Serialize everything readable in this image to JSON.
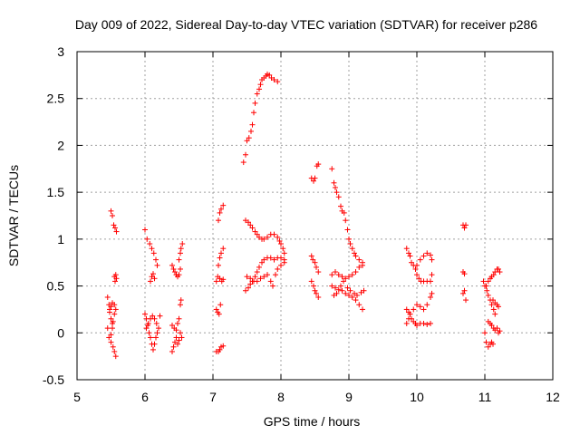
{
  "chart_data": {
    "type": "scatter",
    "title": "Day 009 of 2022, Sidereal Day-to-day VTEC variation (SDTVAR) for receiver p286",
    "xlabel": "GPS time / hours",
    "ylabel": "SDTVAR / TECUs",
    "xlim": [
      5,
      12
    ],
    "ylim": [
      -0.5,
      3
    ],
    "xticks": [
      "5",
      "6",
      "7",
      "8",
      "9",
      "10",
      "11",
      "12"
    ],
    "yticks": [
      "-0.5",
      "0",
      "0.5",
      "1",
      "1.5",
      "2",
      "2.5",
      "3"
    ],
    "grid": true,
    "marker": "plus",
    "color": "#ff0000",
    "series": [
      {
        "name": "SDTVAR",
        "points": [
          [
            5.45,
            0.38
          ],
          [
            5.47,
            0.3
          ],
          [
            5.48,
            0.22
          ],
          [
            5.5,
            0.15
          ],
          [
            5.52,
            0.1
          ],
          [
            5.45,
            0.05
          ],
          [
            5.47,
            -0.05
          ],
          [
            5.5,
            -0.1
          ],
          [
            5.53,
            -0.15
          ],
          [
            5.55,
            -0.2
          ],
          [
            5.57,
            -0.25
          ],
          [
            5.48,
            0.25
          ],
          [
            5.5,
            0.28
          ],
          [
            5.52,
            0.32
          ],
          [
            5.55,
            0.3
          ],
          [
            5.57,
            0.25
          ],
          [
            5.55,
            0.2
          ],
          [
            5.53,
            0.12
          ],
          [
            5.52,
            0.05
          ],
          [
            5.5,
            -0.02
          ],
          [
            5.5,
            1.3
          ],
          [
            5.52,
            1.25
          ],
          [
            5.54,
            1.15
          ],
          [
            5.56,
            1.12
          ],
          [
            5.58,
            1.08
          ],
          [
            5.55,
            0.6
          ],
          [
            5.57,
            0.62
          ],
          [
            5.58,
            0.58
          ],
          [
            5.56,
            0.55
          ],
          [
            6.0,
            1.1
          ],
          [
            6.03,
            1.0
          ],
          [
            6.07,
            0.95
          ],
          [
            6.1,
            0.9
          ],
          [
            6.13,
            0.85
          ],
          [
            6.16,
            0.78
          ],
          [
            6.18,
            0.72
          ],
          [
            6.0,
            0.2
          ],
          [
            6.02,
            0.15
          ],
          [
            6.04,
            0.08
          ],
          [
            6.06,
            0.0
          ],
          [
            6.08,
            -0.05
          ],
          [
            6.1,
            -0.12
          ],
          [
            6.12,
            -0.18
          ],
          [
            6.14,
            -0.12
          ],
          [
            6.16,
            -0.05
          ],
          [
            6.18,
            0.0
          ],
          [
            6.02,
            0.05
          ],
          [
            6.05,
            0.1
          ],
          [
            6.08,
            0.15
          ],
          [
            6.11,
            0.18
          ],
          [
            6.14,
            0.15
          ],
          [
            6.17,
            0.1
          ],
          [
            6.2,
            0.05
          ],
          [
            6.22,
            0.18
          ],
          [
            6.08,
            0.55
          ],
          [
            6.1,
            0.6
          ],
          [
            6.12,
            0.63
          ],
          [
            6.14,
            0.58
          ],
          [
            6.4,
            0.72
          ],
          [
            6.42,
            0.68
          ],
          [
            6.44,
            0.65
          ],
          [
            6.46,
            0.62
          ],
          [
            6.48,
            0.6
          ],
          [
            6.5,
            0.62
          ],
          [
            6.52,
            0.68
          ],
          [
            6.5,
            0.78
          ],
          [
            6.52,
            0.85
          ],
          [
            6.53,
            0.9
          ],
          [
            6.55,
            0.95
          ],
          [
            6.4,
            -0.2
          ],
          [
            6.42,
            -0.15
          ],
          [
            6.44,
            -0.1
          ],
          [
            6.46,
            -0.05
          ],
          [
            6.48,
            -0.12
          ],
          [
            6.5,
            -0.08
          ],
          [
            6.52,
            0.0
          ],
          [
            6.54,
            -0.05
          ],
          [
            6.4,
            0.08
          ],
          [
            6.43,
            0.05
          ],
          [
            6.46,
            0.03
          ],
          [
            6.48,
            0.1
          ],
          [
            6.5,
            0.15
          ],
          [
            6.52,
            0.3
          ],
          [
            6.53,
            0.35
          ],
          [
            7.05,
            -0.2
          ],
          [
            7.08,
            -0.2
          ],
          [
            7.1,
            -0.18
          ],
          [
            7.12,
            -0.15
          ],
          [
            7.15,
            -0.14
          ],
          [
            7.05,
            0.25
          ],
          [
            7.07,
            0.22
          ],
          [
            7.09,
            0.2
          ],
          [
            7.11,
            0.3
          ],
          [
            7.05,
            0.55
          ],
          [
            7.07,
            0.6
          ],
          [
            7.1,
            0.58
          ],
          [
            7.13,
            0.55
          ],
          [
            7.15,
            0.57
          ],
          [
            7.08,
            0.72
          ],
          [
            7.1,
            0.8
          ],
          [
            7.12,
            0.85
          ],
          [
            7.15,
            0.9
          ],
          [
            7.08,
            1.2
          ],
          [
            7.1,
            1.28
          ],
          [
            7.12,
            1.32
          ],
          [
            7.15,
            1.36
          ],
          [
            7.45,
            1.82
          ],
          [
            7.48,
            1.9
          ],
          [
            7.5,
            2.05
          ],
          [
            7.53,
            2.08
          ],
          [
            7.56,
            2.15
          ],
          [
            7.58,
            2.22
          ],
          [
            7.6,
            2.35
          ],
          [
            7.62,
            2.45
          ],
          [
            7.65,
            2.55
          ],
          [
            7.68,
            2.6
          ],
          [
            7.7,
            2.65
          ],
          [
            7.72,
            2.7
          ],
          [
            7.75,
            2.72
          ],
          [
            7.78,
            2.74
          ],
          [
            7.8,
            2.76
          ],
          [
            7.83,
            2.75
          ],
          [
            7.86,
            2.72
          ],
          [
            7.9,
            2.7
          ],
          [
            7.95,
            2.68
          ],
          [
            7.48,
            1.2
          ],
          [
            7.52,
            1.18
          ],
          [
            7.55,
            1.15
          ],
          [
            7.58,
            1.12
          ],
          [
            7.62,
            1.08
          ],
          [
            7.65,
            1.05
          ],
          [
            7.68,
            1.02
          ],
          [
            7.72,
            1.0
          ],
          [
            7.75,
            1.0
          ],
          [
            7.8,
            1.02
          ],
          [
            7.85,
            1.05
          ],
          [
            7.9,
            1.05
          ],
          [
            7.95,
            1.02
          ],
          [
            7.98,
            0.98
          ],
          [
            8.0,
            0.95
          ],
          [
            8.03,
            0.9
          ],
          [
            8.05,
            0.85
          ],
          [
            7.48,
            0.45
          ],
          [
            7.52,
            0.48
          ],
          [
            7.55,
            0.52
          ],
          [
            7.58,
            0.55
          ],
          [
            7.62,
            0.6
          ],
          [
            7.65,
            0.65
          ],
          [
            7.68,
            0.7
          ],
          [
            7.72,
            0.75
          ],
          [
            7.75,
            0.78
          ],
          [
            7.8,
            0.8
          ],
          [
            7.85,
            0.8
          ],
          [
            7.9,
            0.78
          ],
          [
            7.95,
            0.8
          ],
          [
            8.0,
            0.8
          ],
          [
            8.05,
            0.78
          ],
          [
            7.5,
            0.6
          ],
          [
            7.55,
            0.58
          ],
          [
            7.6,
            0.55
          ],
          [
            7.65,
            0.55
          ],
          [
            7.7,
            0.58
          ],
          [
            7.75,
            0.6
          ],
          [
            7.8,
            0.62
          ],
          [
            7.85,
            0.55
          ],
          [
            7.88,
            0.5
          ],
          [
            7.92,
            0.62
          ],
          [
            7.95,
            0.68
          ],
          [
            8.0,
            0.72
          ],
          [
            8.05,
            0.75
          ],
          [
            8.45,
            1.65
          ],
          [
            8.48,
            1.62
          ],
          [
            8.5,
            1.65
          ],
          [
            8.53,
            1.78
          ],
          [
            8.55,
            1.8
          ],
          [
            8.45,
            0.82
          ],
          [
            8.47,
            0.78
          ],
          [
            8.5,
            0.75
          ],
          [
            8.52,
            0.7
          ],
          [
            8.55,
            0.65
          ],
          [
            8.45,
            0.55
          ],
          [
            8.48,
            0.5
          ],
          [
            8.5,
            0.45
          ],
          [
            8.52,
            0.42
          ],
          [
            8.55,
            0.38
          ],
          [
            8.75,
            1.75
          ],
          [
            8.78,
            1.6
          ],
          [
            8.8,
            1.55
          ],
          [
            8.82,
            1.5
          ],
          [
            8.85,
            1.45
          ],
          [
            8.88,
            1.35
          ],
          [
            8.9,
            1.3
          ],
          [
            8.93,
            1.28
          ],
          [
            8.95,
            1.2
          ],
          [
            8.98,
            1.1
          ],
          [
            9.0,
            1.0
          ],
          [
            9.02,
            0.95
          ],
          [
            9.05,
            0.9
          ],
          [
            9.08,
            0.85
          ],
          [
            9.1,
            0.82
          ],
          [
            9.15,
            0.78
          ],
          [
            9.2,
            0.75
          ],
          [
            8.75,
            0.62
          ],
          [
            8.8,
            0.65
          ],
          [
            8.85,
            0.62
          ],
          [
            8.9,
            0.6
          ],
          [
            8.95,
            0.58
          ],
          [
            9.0,
            0.6
          ],
          [
            9.05,
            0.62
          ],
          [
            9.1,
            0.65
          ],
          [
            9.15,
            0.7
          ],
          [
            9.2,
            0.72
          ],
          [
            8.75,
            0.5
          ],
          [
            8.8,
            0.48
          ],
          [
            8.85,
            0.46
          ],
          [
            8.9,
            0.45
          ],
          [
            8.95,
            0.42
          ],
          [
            9.0,
            0.4
          ],
          [
            9.05,
            0.38
          ],
          [
            9.1,
            0.35
          ],
          [
            9.15,
            0.3
          ],
          [
            9.2,
            0.25
          ],
          [
            8.78,
            0.4
          ],
          [
            8.82,
            0.42
          ],
          [
            8.88,
            0.5
          ],
          [
            8.92,
            0.55
          ],
          [
            8.98,
            0.48
          ],
          [
            9.02,
            0.45
          ],
          [
            9.08,
            0.42
          ],
          [
            9.12,
            0.4
          ],
          [
            9.18,
            0.43
          ],
          [
            9.22,
            0.45
          ],
          [
            9.85,
            0.9
          ],
          [
            9.88,
            0.85
          ],
          [
            9.9,
            0.82
          ],
          [
            9.92,
            0.75
          ],
          [
            9.95,
            0.72
          ],
          [
            9.98,
            0.68
          ],
          [
            10.0,
            0.62
          ],
          [
            10.03,
            0.58
          ],
          [
            10.06,
            0.55
          ],
          [
            10.1,
            0.55
          ],
          [
            10.15,
            0.55
          ],
          [
            10.2,
            0.55
          ],
          [
            10.22,
            0.62
          ],
          [
            10.0,
            0.72
          ],
          [
            10.05,
            0.78
          ],
          [
            10.1,
            0.82
          ],
          [
            10.15,
            0.85
          ],
          [
            10.2,
            0.83
          ],
          [
            10.22,
            0.78
          ],
          [
            9.85,
            0.25
          ],
          [
            9.88,
            0.22
          ],
          [
            9.9,
            0.2
          ],
          [
            9.92,
            0.15
          ],
          [
            9.95,
            0.12
          ],
          [
            9.98,
            0.1
          ],
          [
            10.0,
            0.08
          ],
          [
            10.05,
            0.1
          ],
          [
            10.1,
            0.1
          ],
          [
            10.15,
            0.09
          ],
          [
            10.2,
            0.1
          ],
          [
            9.85,
            0.1
          ],
          [
            9.88,
            0.15
          ],
          [
            9.9,
            0.2
          ],
          [
            9.95,
            0.25
          ],
          [
            10.0,
            0.3
          ],
          [
            10.05,
            0.28
          ],
          [
            10.1,
            0.25
          ],
          [
            10.15,
            0.3
          ],
          [
            10.2,
            0.38
          ],
          [
            10.22,
            0.42
          ],
          [
            10.68,
            1.15
          ],
          [
            10.7,
            1.12
          ],
          [
            10.72,
            1.15
          ],
          [
            10.68,
            0.65
          ],
          [
            10.7,
            0.63
          ],
          [
            10.68,
            0.42
          ],
          [
            10.7,
            0.45
          ],
          [
            10.72,
            0.35
          ],
          [
            10.98,
            0.55
          ],
          [
            11.0,
            0.5
          ],
          [
            11.03,
            0.45
          ],
          [
            11.05,
            0.4
          ],
          [
            11.08,
            0.35
          ],
          [
            11.1,
            0.3
          ],
          [
            11.13,
            0.25
          ],
          [
            11.15,
            0.2
          ],
          [
            11.0,
            0.0
          ],
          [
            11.02,
            -0.1
          ],
          [
            11.05,
            -0.15
          ],
          [
            11.08,
            -0.12
          ],
          [
            11.1,
            -0.1
          ],
          [
            11.12,
            -0.12
          ],
          [
            11.02,
            0.5
          ],
          [
            11.05,
            0.55
          ],
          [
            11.08,
            0.58
          ],
          [
            11.1,
            0.6
          ],
          [
            11.13,
            0.62
          ],
          [
            11.15,
            0.65
          ],
          [
            11.18,
            0.68
          ],
          [
            11.2,
            0.68
          ],
          [
            11.22,
            0.65
          ],
          [
            11.05,
            0.12
          ],
          [
            11.08,
            0.1
          ],
          [
            11.1,
            0.08
          ],
          [
            11.13,
            0.05
          ],
          [
            11.15,
            0.03
          ],
          [
            11.18,
            0.05
          ],
          [
            11.2,
            0.0
          ],
          [
            11.22,
            0.02
          ],
          [
            11.12,
            0.35
          ],
          [
            11.15,
            0.32
          ],
          [
            11.18,
            0.3
          ],
          [
            11.2,
            0.28
          ]
        ]
      }
    ]
  }
}
